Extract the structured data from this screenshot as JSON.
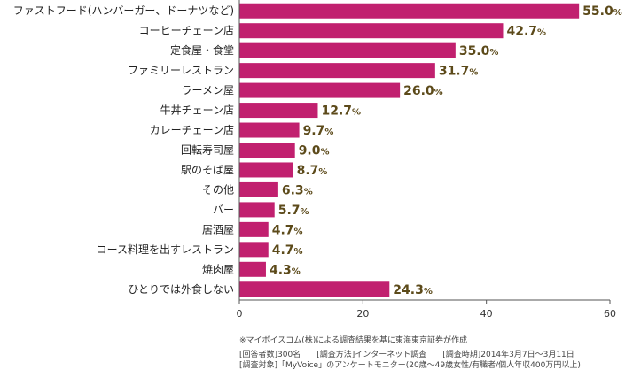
{
  "chart_data": {
    "type": "bar",
    "orientation": "horizontal",
    "categories": [
      "ファストフード(ハンバーガー、ドーナツなど)",
      "コーヒーチェーン店",
      "定食屋・食堂",
      "ファミリーレストラン",
      "ラーメン屋",
      "牛丼チェーン店",
      "カレーチェーン店",
      "回転寿司屋",
      "駅のそば屋",
      "その他",
      "バー",
      "居酒屋",
      "コース料理を出すレストラン",
      "焼肉屋",
      "ひとりでは外食しない"
    ],
    "values": [
      55.0,
      42.7,
      35.0,
      31.7,
      26.0,
      12.7,
      9.7,
      9.0,
      8.7,
      6.3,
      5.7,
      4.7,
      4.7,
      4.3,
      24.3
    ],
    "value_labels": [
      "55.0",
      "42.7",
      "35.0",
      "31.7",
      "26.0",
      "12.7",
      "9.7",
      "9.0",
      "8.7",
      "6.3",
      "5.7",
      "4.7",
      "4.7",
      "4.3",
      "24.3"
    ],
    "unit": "%",
    "xlim": [
      0,
      60
    ],
    "xticks": [
      "0",
      "20",
      "40",
      "60"
    ],
    "grid": false,
    "bar_color": "#c1206f",
    "value_color": "#5c4a1a",
    "title": "",
    "xlabel": "",
    "ylabel": ""
  },
  "notes": {
    "source": "※マイボイスコム(株)による調査結果を基に東海東京証券が作成",
    "line1": "[回答者数]300名　　[調査方法]インターネット調査　　[調査時期]2014年3月7日～3月11日",
    "line2": "[調査対象]「MyVoice」のアンケートモニター(20歳～49歳女性/有職者/個人年収400万円以上)"
  }
}
